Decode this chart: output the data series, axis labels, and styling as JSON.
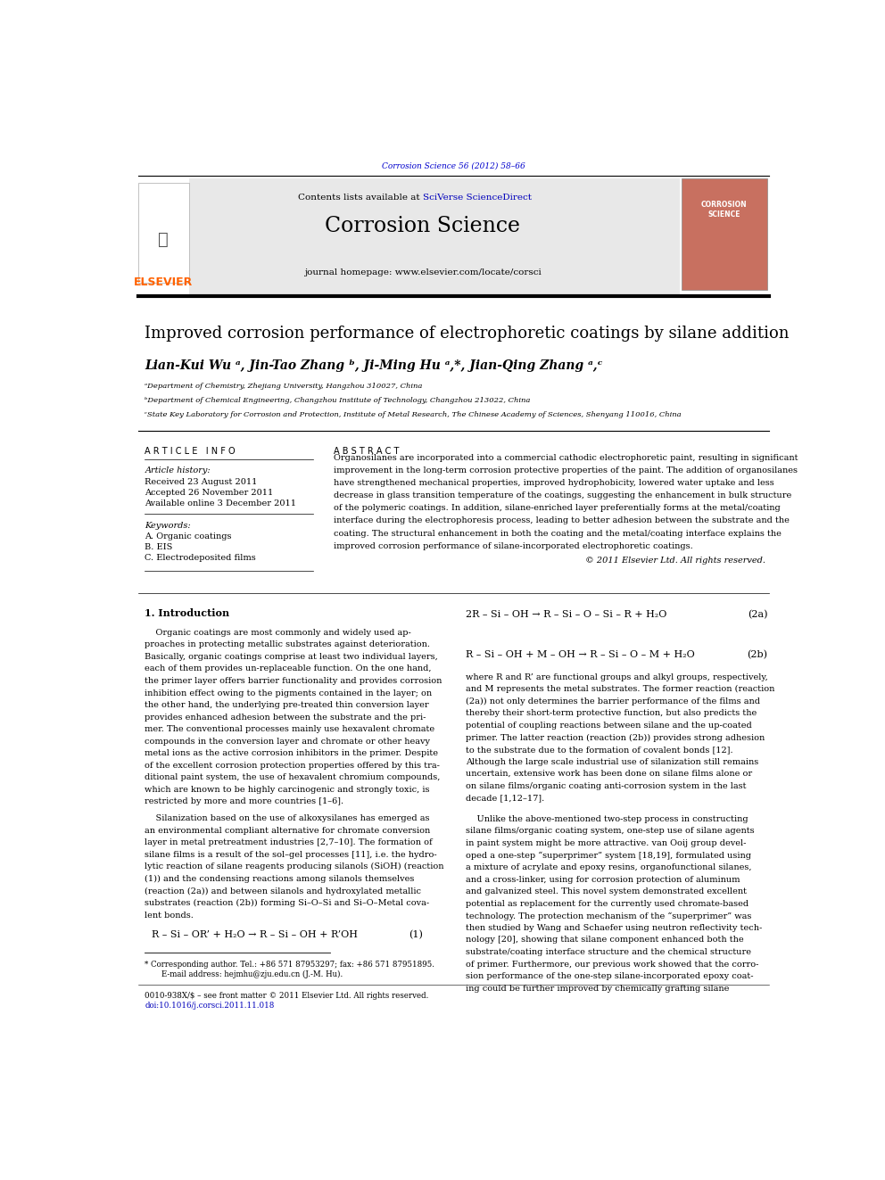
{
  "page_width": 9.92,
  "page_height": 13.23,
  "bg_color": "#ffffff",
  "top_citation": "Corrosion Science 56 (2012) 58–66",
  "top_citation_color": "#0000cc",
  "journal_name": "Corrosion Science",
  "journal_homepage": "journal homepage: www.elsevier.com/locate/corsci",
  "article_title": "Improved corrosion performance of electrophoretic coatings by silane addition",
  "affil_a": "ᵃDepartment of Chemistry, Zhejiang University, Hangzhou 310027, China",
  "affil_b": "ᵇDepartment of Chemical Engineering, Changzhou Institute of Technology, Changzhou 213022, China",
  "affil_c": "ᶜState Key Laboratory for Corrosion and Protection, Institute of Metal Research, The Chinese Academy of Sciences, Shenyang 110016, China",
  "article_info_header": "A R T I C L E   I N F O",
  "abstract_header": "A B S T R A C T",
  "article_history_label": "Article history:",
  "received": "Received 23 August 2011",
  "accepted": "Accepted 26 November 2011",
  "available": "Available online 3 December 2011",
  "keywords_label": "Keywords:",
  "kw1": "A. Organic coatings",
  "kw2": "B. EIS",
  "kw3": "C. Electrodeposited films",
  "abstract_text": "Organosilanes are incorporated into a commercial cathodic electrophoretic paint, resulting in significant\nimprovement in the long-term corrosion protective properties of the paint. The addition of organosilanes\nhave strengthened mechanical properties, improved hydrophobicity, lowered water uptake and less\ndecrease in glass transition temperature of the coatings, suggesting the enhancement in bulk structure\nof the polymeric coatings. In addition, silane-enriched layer preferentially forms at the metal/coating\ninterface during the electrophoresis process, leading to better adhesion between the substrate and the\ncoating. The structural enhancement in both the coating and the metal/coating interface explains the\nimproved corrosion performance of silane-incorporated electrophoretic coatings.",
  "copyright": "© 2011 Elsevier Ltd. All rights reserved.",
  "intro_header": "1. Introduction",
  "intro_text1": "    Organic coatings are most commonly and widely used ap-\nproaches in protecting metallic substrates against deterioration.\nBasically, organic coatings comprise at least two individual layers,\neach of them provides un-replaceable function. On the one hand,\nthe primer layer offers barrier functionality and provides corrosion\ninhibition effect owing to the pigments contained in the layer; on\nthe other hand, the underlying pre-treated thin conversion layer\nprovides enhanced adhesion between the substrate and the pri-\nmer. The conventional processes mainly use hexavalent chromate\ncompounds in the conversion layer and chromate or other heavy\nmetal ions as the active corrosion inhibitors in the primer. Despite\nof the excellent corrosion protection properties offered by this tra-\nditional paint system, the use of hexavalent chromium compounds,\nwhich are known to be highly carcinogenic and strongly toxic, is\nrestricted by more and more countries [1–6].",
  "intro_text2": "    Silanization based on the use of alkoxysilanes has emerged as\nan environmental compliant alternative for chromate conversion\nlayer in metal pretreatment industries [2,7–10]. The formation of\nsilane films is a result of the sol–gel processes [11], i.e. the hydro-\nlytic reaction of silane reagents producing silanols (SiOH) (reaction\n(1)) and the condensing reactions among silanols themselves\n(reaction (2a)) and between silanols and hydroxylated metallic\nsubstrates (reaction (2b)) forming Si–O–Si and Si–O–Metal cova-\nlent bonds.",
  "eq1": "R – Si – OR’ + H₂O → R – Si – OH + R’OH",
  "eq1_num": "(1)",
  "eq2a": "2R – Si – OH → R – Si – O – Si – R + H₂O",
  "eq2a_num": "(2a)",
  "eq2b": "R – Si – OH + M – OH → R – Si – O – M + H₂O",
  "eq2b_num": "(2b)",
  "right_col_text1": "where R and R’ are functional groups and alkyl groups, respectively,\nand M represents the metal substrates. The former reaction (reaction\n(2a)) not only determines the barrier performance of the films and\nthereby their short-term protective function, but also predicts the\npotential of coupling reactions between silane and the up-coated\nprimer. The latter reaction (reaction (2b)) provides strong adhesion\nto the substrate due to the formation of covalent bonds [12].\nAlthough the large scale industrial use of silanization still remains\nuncertain, extensive work has been done on silane films alone or\non silane films/organic coating anti-corrosion system in the last\ndecade [1,12–17].",
  "right_col_text2": "    Unlike the above-mentioned two-step process in constructing\nsilane films/organic coating system, one-step use of silane agents\nin paint system might be more attractive. van Ooij group devel-\noped a one-step “superprimer” system [18,19], formulated using\na mixture of acrylate and epoxy resins, organofunctional silanes,\nand a cross-linker, using for corrosion protection of aluminum\nand galvanized steel. This novel system demonstrated excellent\npotential as replacement for the currently used chromate-based\ntechnology. The protection mechanism of the “superprimer” was\nthen studied by Wang and Schaefer using neutron reflectivity tech-\nnology [20], showing that silane component enhanced both the\nsubstrate/coating interface structure and the chemical structure\nof primer. Furthermore, our previous work showed that the corro-\nsion performance of the one-step silane-incorporated epoxy coat-\ning could be further improved by chemically grafting silane",
  "footnote_star": "* Corresponding author. Tel.: +86 571 87953297; fax: +86 571 87951895.",
  "footnote_email": "    E-mail address: hejmhu@zju.edu.cn (J.-M. Hu).",
  "footnote_issn": "0010-938X/$ – see front matter © 2011 Elsevier Ltd. All rights reserved.",
  "footnote_doi": "doi:10.1016/j.corsci.2011.11.018",
  "elsevier_color": "#FF6200",
  "link_color": "#0000bb",
  "header_gray": "#e8e8e8"
}
